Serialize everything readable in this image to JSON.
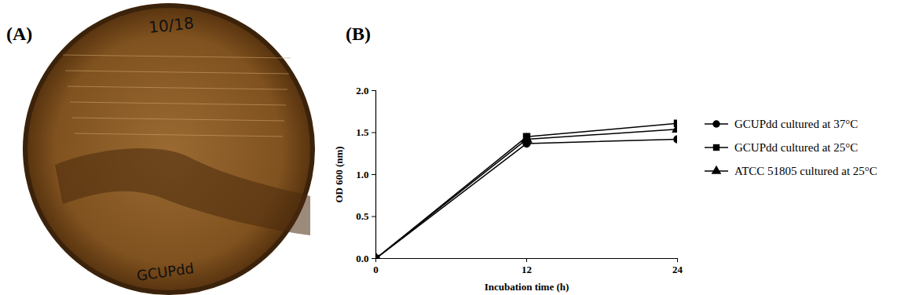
{
  "panel_a": {
    "panel_label": "(A)",
    "plate_texts": [
      "10/18",
      "GCUPdd"
    ]
  },
  "chart_data": {
    "type": "line",
    "panel_label": "(B)",
    "x_label": "Incubation time (h)",
    "y_label": "OD 600 (nm)",
    "x": [
      0,
      12,
      24
    ],
    "series": [
      {
        "name": "GCUPdd cultured at 37°C",
        "color": "#000000",
        "marker": "circle",
        "values": [
          0,
          1.37,
          1.42
        ]
      },
      {
        "name": "GCUPdd cultured at 25°C",
        "color": "#000000",
        "marker": "square",
        "values": [
          0,
          1.45,
          1.61
        ]
      },
      {
        "name": "ATCC 51805 cultured at 25°C",
        "color": "#000000",
        "marker": "triangle",
        "values": [
          0,
          1.42,
          1.54
        ]
      }
    ],
    "xlim": [
      0,
      24
    ],
    "xticks": [
      0,
      12,
      24
    ],
    "ylim": [
      0,
      2
    ],
    "yticks": [
      {
        "value": 0,
        "label": "0.0"
      },
      {
        "value": 0.5,
        "label": "0.5"
      },
      {
        "value": 1,
        "label": "1.0"
      },
      {
        "value": 1.5,
        "label": "1.5"
      },
      {
        "value": 2,
        "label": "2.0"
      }
    ],
    "grid": false,
    "legend": "right"
  }
}
